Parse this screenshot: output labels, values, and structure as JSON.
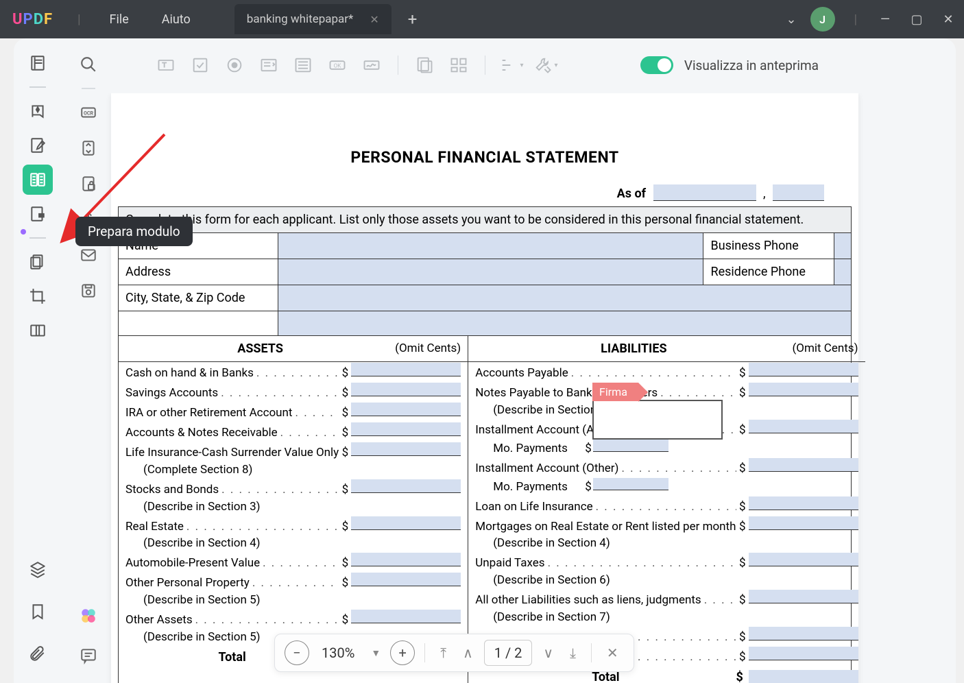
{
  "app": {
    "logo": "UPDF",
    "menu_file": "File",
    "menu_help": "Aiuto"
  },
  "tab": {
    "title": "banking whitepapar*"
  },
  "window": {
    "avatar_letter": "J"
  },
  "toolbar": {
    "preview_label": "Visualizza in anteprima"
  },
  "tooltip": {
    "prepare_form": "Prepara modulo"
  },
  "badge": {
    "firma": "Firma"
  },
  "doc": {
    "title": "PERSONAL FINANCIAL STATEMENT",
    "asof_label": "As of",
    "instructions": "Complete this form for each applicant.  List only those assets you want to be considered in this personal financial statement.",
    "name_label": "Name",
    "biz_phone_label": "Business Phone",
    "address_label": "Address",
    "res_phone_label": "Residence Phone",
    "city_label": "City, State, & Zip Code",
    "assets_header": "ASSETS",
    "liab_header": "LIABILITIES",
    "omit_cents": "(Omit Cents)",
    "total_label": "Total",
    "assets": [
      {
        "t": "Cash on hand & in Banks"
      },
      {
        "t": "Savings Accounts"
      },
      {
        "t": "IRA or other Retirement Account"
      },
      {
        "t": "Accounts & Notes Receivable"
      },
      {
        "t": "Life Insurance-Cash Surrender Value Only",
        "s": "(Complete Section 8)"
      },
      {
        "t": "Stocks and Bonds",
        "s": "(Describe in Section 3)"
      },
      {
        "t": "Real Estate",
        "s": "(Describe in Section 4)"
      },
      {
        "t": "Automobile-Present Value"
      },
      {
        "t": "Other Personal Property",
        "s": "(Describe in Section 5)"
      },
      {
        "t": "Other Assets",
        "s": "(Describe in Section 5)"
      }
    ],
    "liabs": [
      {
        "t": "Accounts Payable"
      },
      {
        "t": "Notes Payable to Banks and Others",
        "s": "(Describe in Section 2)"
      },
      {
        "t": "Installment Account (Auto)",
        "mo": "Mo. Payments"
      },
      {
        "t": "Installment Account (Other)",
        "mo": "Mo. Payments"
      },
      {
        "t": "Loan on Life Insurance"
      },
      {
        "t": "Mortgages on Real Estate or Rent listed per month",
        "s": "(Describe in Section 4)"
      },
      {
        "t": "Unpaid Taxes",
        "s": "(Describe in Section 6)"
      },
      {
        "t": "All other Liabilities such as liens, judgments",
        "s": "(Describe in Section 7)"
      }
    ]
  },
  "zoom": {
    "level": "130%",
    "page_current": "1",
    "page_sep": "/",
    "page_total": "2"
  },
  "colors": {
    "field_fill": "#d5dff0",
    "accent_green": "#2cc490",
    "firma_red": "#f08080",
    "titlebar": "#3a3e43"
  }
}
